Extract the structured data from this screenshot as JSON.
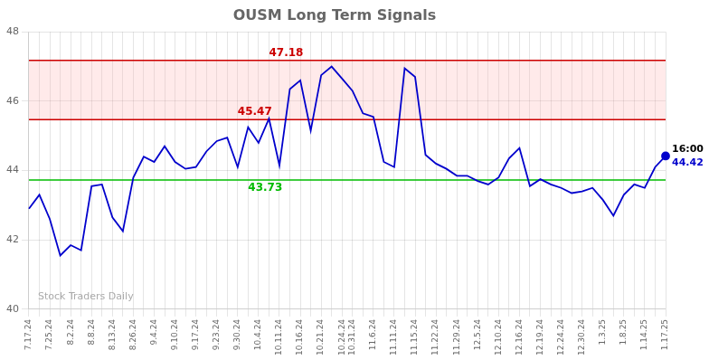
{
  "chart_data": {
    "type": "line",
    "title": "OUSM Long Term Signals",
    "watermark": "Stock Traders Daily",
    "categories": [
      "7.17.24",
      null,
      "7.25.24",
      null,
      "8.2.24",
      null,
      "8.8.24",
      null,
      "8.13.24",
      null,
      "8.26.24",
      null,
      "9.4.24",
      null,
      "9.10.24",
      null,
      "9.17.24",
      null,
      "9.23.24",
      null,
      "9.30.24",
      null,
      "10.4.24",
      null,
      "10.11.24",
      null,
      "10.16.24",
      null,
      "10.21.24",
      null,
      "10.24.24",
      "10.31.24",
      null,
      "11.6.24",
      null,
      "11.11.24",
      null,
      "11.15.24",
      null,
      "11.22.24",
      null,
      "11.29.24",
      null,
      "12.5.24",
      null,
      "12.10.24",
      null,
      "12.16.24",
      null,
      "12.19.24",
      null,
      "12.24.24",
      null,
      "12.30.24",
      null,
      "1.3.25",
      null,
      "1.8.25",
      null,
      "1.14.25",
      null,
      "1.17.25"
    ],
    "values": [
      42.9,
      43.3,
      42.6,
      41.55,
      41.85,
      41.7,
      43.55,
      43.6,
      42.65,
      42.25,
      43.8,
      44.4,
      44.25,
      44.7,
      44.25,
      44.05,
      44.1,
      44.55,
      44.85,
      44.95,
      44.1,
      45.25,
      44.8,
      45.5,
      44.15,
      46.35,
      46.6,
      45.15,
      46.75,
      47.0,
      46.65,
      46.3,
      45.65,
      45.55,
      44.25,
      44.1,
      46.95,
      46.7,
      44.45,
      44.2,
      44.05,
      43.85,
      43.85,
      43.7,
      43.6,
      43.8,
      44.35,
      44.65,
      43.55,
      43.75,
      43.6,
      43.5,
      43.35,
      43.4,
      43.5,
      43.15,
      42.7,
      43.3,
      43.6,
      43.5,
      44.1,
      44.42
    ],
    "color": "#0000cc",
    "hlines": [
      {
        "value": 47.18,
        "label": "47.18",
        "color": "#cc0000"
      },
      {
        "value": 45.47,
        "label": "45.47",
        "color": "#cc0000"
      },
      {
        "value": 43.73,
        "label": "43.73",
        "color": "#00bb00"
      }
    ],
    "band": {
      "from": 45.47,
      "to": 47.18,
      "color": "#ffaaaa"
    },
    "annotations": [
      {
        "text": "16:00",
        "color": "#000000"
      },
      {
        "text": "44.42",
        "color": "#0000cc"
      }
    ],
    "ylim": [
      40,
      48
    ],
    "yticks": [
      40,
      42,
      44,
      46,
      48
    ],
    "grid": true
  }
}
